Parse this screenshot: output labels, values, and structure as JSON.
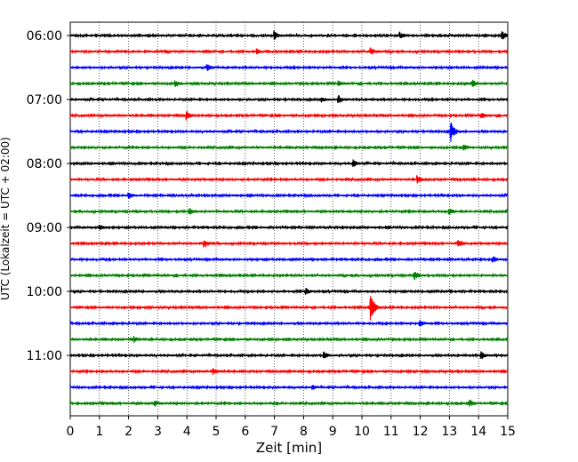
{
  "chart_data": {
    "type": "line",
    "title": "",
    "xlabel": "Zeit  [min]",
    "ylabel": "UTC (Lokalzeit = UTC + 02:00)",
    "xlim": [
      0,
      15
    ],
    "x_ticks": [
      "0",
      "1",
      "2",
      "3",
      "4",
      "5",
      "6",
      "7",
      "8",
      "9",
      "10",
      "11",
      "12",
      "13",
      "14",
      "15"
    ],
    "y_ticks": [
      "06:00",
      "07:00",
      "08:00",
      "09:00",
      "10:00",
      "11:00"
    ],
    "grid": "vertical-dotted",
    "legend": "none",
    "trace_colors": [
      "#000000",
      "#ff0000",
      "#0000ff",
      "#008000"
    ],
    "trace_start_times": [
      "06:00",
      "06:15",
      "06:30",
      "06:45",
      "07:00",
      "07:15",
      "07:30",
      "07:45",
      "08:00",
      "08:15",
      "08:30",
      "08:45",
      "09:00",
      "09:15",
      "09:30",
      "09:45",
      "10:00",
      "10:15",
      "10:30",
      "10:45",
      "11:00",
      "11:15",
      "11:30",
      "11:45"
    ],
    "events": [
      {
        "trace": 0,
        "x": 7.0,
        "amp": 0.5
      },
      {
        "trace": 0,
        "x": 11.3,
        "amp": 0.4
      },
      {
        "trace": 0,
        "x": 14.8,
        "amp": 0.6
      },
      {
        "trace": 1,
        "x": 6.4,
        "amp": 0.3
      },
      {
        "trace": 1,
        "x": 10.3,
        "amp": 0.4
      },
      {
        "trace": 2,
        "x": 4.7,
        "amp": 0.35
      },
      {
        "trace": 3,
        "x": 3.6,
        "amp": 0.4
      },
      {
        "trace": 3,
        "x": 9.2,
        "amp": 0.3
      },
      {
        "trace": 3,
        "x": 13.8,
        "amp": 0.4
      },
      {
        "trace": 4,
        "x": 8.6,
        "amp": 0.3
      },
      {
        "trace": 4,
        "x": 9.2,
        "amp": 0.45
      },
      {
        "trace": 5,
        "x": 4.0,
        "amp": 0.5
      },
      {
        "trace": 5,
        "x": 14.1,
        "amp": 0.3
      },
      {
        "trace": 6,
        "x": 13.05,
        "amp": 1.45
      },
      {
        "trace": 7,
        "x": 13.5,
        "amp": 0.3
      },
      {
        "trace": 8,
        "x": 9.7,
        "amp": 0.4
      },
      {
        "trace": 9,
        "x": 11.9,
        "amp": 0.5
      },
      {
        "trace": 10,
        "x": 2.0,
        "amp": 0.35
      },
      {
        "trace": 11,
        "x": 4.1,
        "amp": 0.35
      },
      {
        "trace": 11,
        "x": 13.0,
        "amp": 0.35
      },
      {
        "trace": 12,
        "x": 1.0,
        "amp": 0.3
      },
      {
        "trace": 13,
        "x": 4.6,
        "amp": 0.4
      },
      {
        "trace": 13,
        "x": 13.3,
        "amp": 0.45
      },
      {
        "trace": 14,
        "x": 14.5,
        "amp": 0.35
      },
      {
        "trace": 15,
        "x": 11.8,
        "amp": 0.5
      },
      {
        "trace": 16,
        "x": 8.1,
        "amp": 0.35
      },
      {
        "trace": 17,
        "x": 10.3,
        "amp": 1.7
      },
      {
        "trace": 18,
        "x": 12.0,
        "amp": 0.3
      },
      {
        "trace": 19,
        "x": 2.2,
        "amp": 0.35
      },
      {
        "trace": 20,
        "x": 8.7,
        "amp": 0.4
      },
      {
        "trace": 20,
        "x": 14.1,
        "amp": 0.4
      },
      {
        "trace": 21,
        "x": 4.9,
        "amp": 0.35
      },
      {
        "trace": 22,
        "x": 8.3,
        "amp": 0.3
      },
      {
        "trace": 23,
        "x": 2.9,
        "amp": 0.35
      },
      {
        "trace": 23,
        "x": 13.7,
        "amp": 0.35
      }
    ]
  }
}
